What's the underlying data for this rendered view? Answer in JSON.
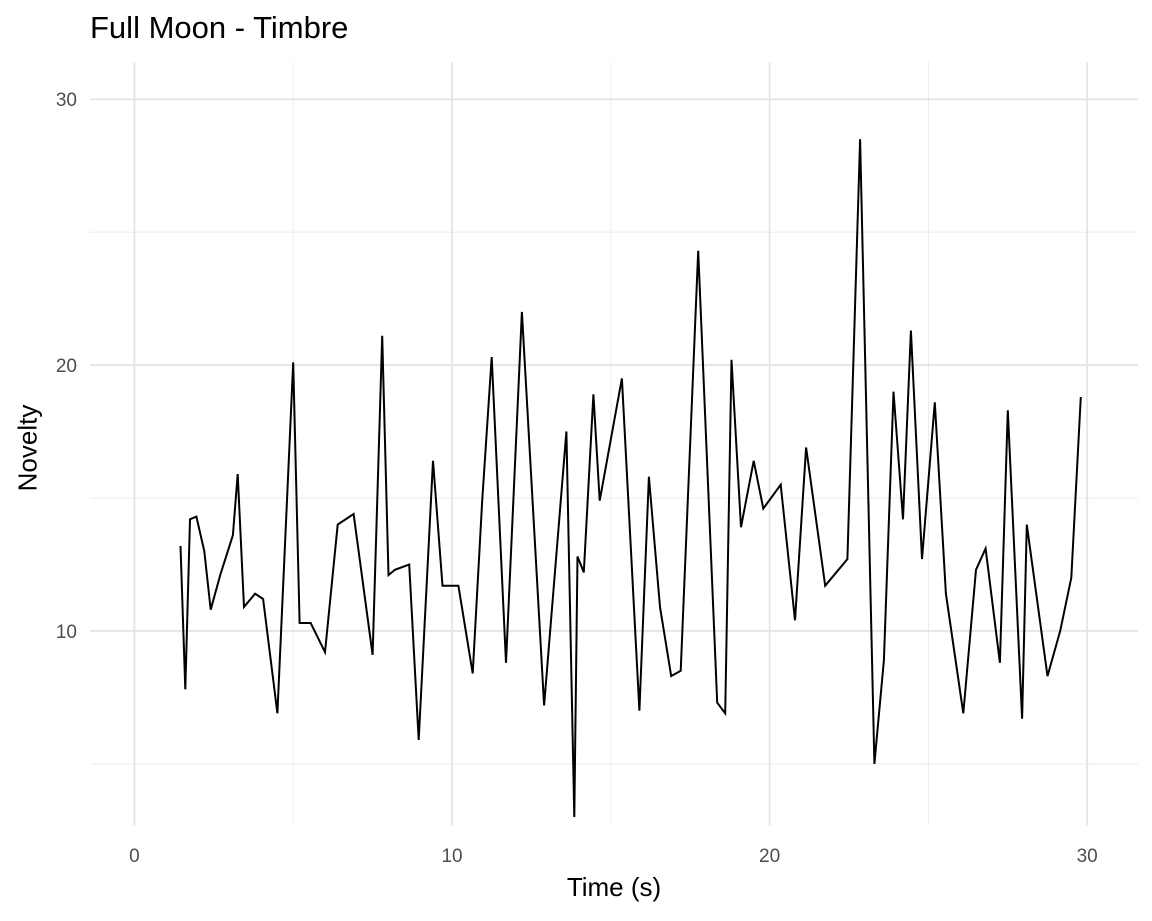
{
  "chart_data": {
    "type": "line",
    "title": "Full Moon - Timbre",
    "xlabel": "Time (s)",
    "ylabel": "Novelty",
    "xlim": [
      -1.4,
      31.6
    ],
    "ylim": [
      2.7,
      31.4
    ],
    "x_ticks": [
      0,
      10,
      20,
      30
    ],
    "y_ticks": [
      10,
      20,
      30
    ],
    "x_minor": [
      5,
      15,
      25
    ],
    "y_minor": [
      5,
      15,
      25
    ],
    "grid": true,
    "line_color": "#000000",
    "series": [
      {
        "name": "Novelty",
        "x": [
          1.45,
          1.6,
          1.75,
          1.95,
          2.2,
          2.4,
          2.7,
          3.1,
          3.25,
          3.45,
          3.8,
          4.05,
          4.5,
          5.0,
          5.2,
          5.55,
          6.0,
          6.4,
          6.9,
          7.5,
          7.8,
          8.0,
          8.2,
          8.65,
          8.95,
          9.4,
          9.7,
          10.2,
          10.65,
          10.95,
          11.25,
          11.7,
          12.2,
          12.9,
          13.6,
          13.85,
          13.95,
          14.15,
          14.45,
          14.65,
          15.35,
          15.9,
          16.2,
          16.55,
          16.9,
          17.2,
          17.75,
          18.35,
          18.6,
          18.8,
          19.1,
          19.5,
          19.8,
          20.35,
          20.8,
          21.15,
          21.75,
          22.45,
          22.85,
          23.3,
          23.6,
          23.9,
          24.2,
          24.45,
          24.8,
          25.2,
          25.55,
          26.1,
          26.5,
          26.8,
          27.25,
          27.5,
          27.95,
          28.1,
          28.75,
          29.15,
          29.5,
          29.8
        ],
        "y": [
          13.2,
          7.8,
          14.2,
          14.3,
          13.0,
          10.8,
          12.1,
          13.6,
          15.9,
          10.9,
          11.4,
          11.2,
          6.9,
          20.1,
          10.3,
          10.3,
          9.2,
          14.0,
          14.4,
          9.1,
          21.1,
          12.1,
          12.3,
          12.5,
          5.9,
          16.4,
          11.7,
          11.7,
          8.4,
          14.9,
          20.3,
          8.8,
          22.0,
          7.2,
          17.5,
          3.0,
          12.8,
          12.2,
          18.9,
          14.9,
          19.5,
          7.0,
          15.8,
          10.9,
          8.3,
          8.5,
          24.3,
          7.3,
          6.9,
          20.2,
          13.9,
          16.4,
          14.6,
          15.5,
          10.4,
          16.9,
          11.7,
          12.7,
          28.5,
          5.0,
          8.9,
          19.0,
          14.2,
          21.3,
          12.7,
          18.6,
          11.4,
          6.9,
          12.3,
          13.1,
          8.8,
          18.3,
          6.7,
          14.0,
          8.3,
          10.0,
          12.0,
          18.8
        ]
      }
    ]
  }
}
